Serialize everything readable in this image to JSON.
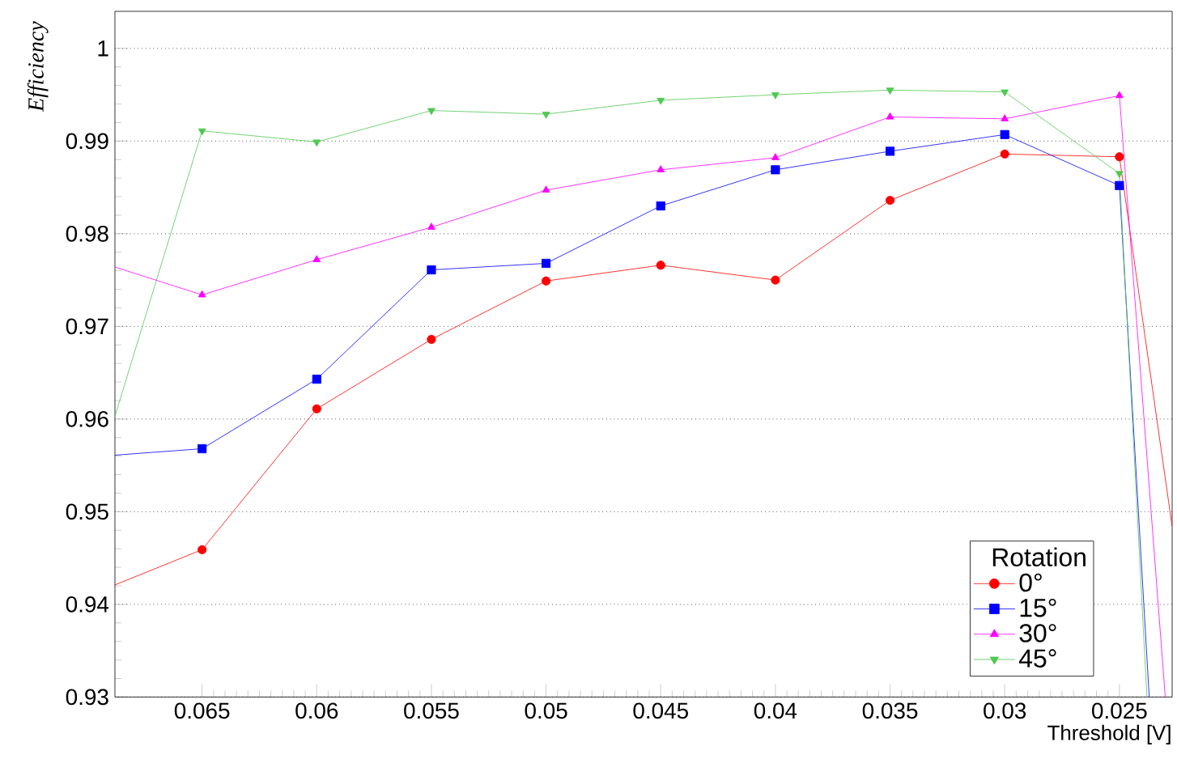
{
  "chart_data": {
    "type": "line",
    "xlabel": "Threshold [V]",
    "ylabel": "Efficiency",
    "legend_title": "Rotation",
    "xlim": [
      0.0688,
      0.0227
    ],
    "ylim": [
      0.93,
      1.004
    ],
    "xticks": [
      0.065,
      0.06,
      0.055,
      0.05,
      0.045,
      0.04,
      0.035,
      0.03,
      0.025
    ],
    "yticks": [
      0.93,
      0.94,
      0.95,
      0.96,
      0.97,
      0.98,
      0.99,
      1
    ],
    "grid": "y",
    "legend": "bottom right",
    "line_style": "solid",
    "series": [
      {
        "name": "0°",
        "color": "#ff0000",
        "marker": "circle",
        "x": [
          0.0688,
          0.065,
          0.06,
          0.055,
          0.05,
          0.045,
          0.04,
          0.035,
          0.03,
          0.025,
          0.0227
        ],
        "values": [
          0.9421,
          0.9459,
          0.9611,
          0.9686,
          0.9749,
          0.9766,
          0.975,
          0.9836,
          0.9886,
          0.9883,
          0.9484
        ]
      },
      {
        "name": "15°",
        "color": "#0000ff",
        "marker": "square",
        "x": [
          0.0688,
          0.065,
          0.06,
          0.055,
          0.05,
          0.045,
          0.04,
          0.035,
          0.03,
          0.025,
          0.0237
        ],
        "values": [
          0.9561,
          0.9568,
          0.9643,
          0.9761,
          0.9768,
          0.983,
          0.9869,
          0.9889,
          0.9907,
          0.9852,
          0.93
        ]
      },
      {
        "name": "30°",
        "color": "#ff00ff",
        "marker": "triangle",
        "x": [
          0.0688,
          0.065,
          0.06,
          0.055,
          0.05,
          0.045,
          0.04,
          0.035,
          0.03,
          0.025,
          0.023
        ],
        "values": [
          0.9764,
          0.9734,
          0.9772,
          0.9807,
          0.9847,
          0.9869,
          0.9882,
          0.9926,
          0.9924,
          0.9949,
          0.93
        ]
      },
      {
        "name": "45°",
        "color": "#4fc84f",
        "marker": "triangle-down",
        "x": [
          0.0688,
          0.065,
          0.06,
          0.055,
          0.05,
          0.045,
          0.04,
          0.035,
          0.03,
          0.025,
          0.0238
        ],
        "values": [
          0.9603,
          0.9911,
          0.9899,
          0.9933,
          0.9929,
          0.9944,
          0.995,
          0.9955,
          0.9953,
          0.9865,
          0.93
        ]
      }
    ]
  }
}
